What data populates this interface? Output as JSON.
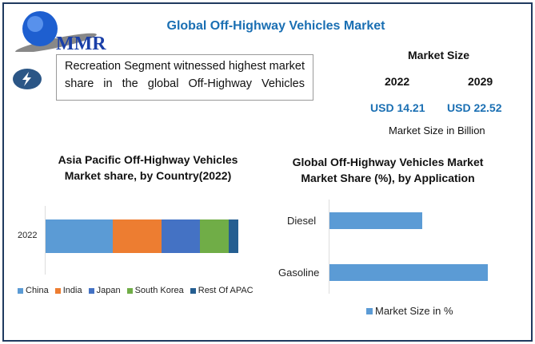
{
  "header": {
    "title": "Global Off-Highway Vehicles Market",
    "logo_text": "MMR",
    "icon": "lightning-bolt-icon"
  },
  "note": "Recreation Segment witnessed highest market share in the global Off-Highway Vehicles",
  "market_size": {
    "label": "Market Size",
    "year1": "2022",
    "year2": "2029",
    "value1": "USD 14.21",
    "value2": "USD 22.52",
    "unit_label": "Market Size in Billion"
  },
  "colors": {
    "accent": "#1a6fb3",
    "frame": "#1f3a5f"
  },
  "chart_data": [
    {
      "type": "bar",
      "orientation": "horizontal",
      "stacked": true,
      "title": "Asia Pacific Off-Highway Vehicles Market  share, by Country(2022)",
      "categories": [
        "2022"
      ],
      "series": [
        {
          "name": "China",
          "values": [
            35
          ],
          "color": "#5b9bd5"
        },
        {
          "name": "India",
          "values": [
            25
          ],
          "color": "#ed7d31"
        },
        {
          "name": "Japan",
          "values": [
            20
          ],
          "color": "#4472c4"
        },
        {
          "name": "South Korea",
          "values": [
            15
          ],
          "color": "#70ad47"
        },
        {
          "name": "Rest Of APAC",
          "values": [
            5
          ],
          "color": "#255e91"
        }
      ],
      "legend": "bottom"
    },
    {
      "type": "bar",
      "orientation": "horizontal",
      "title": "Global Off-Highway Vehicles Market Market Share (%), by Application",
      "categories": [
        "Diesel",
        "Gasoline"
      ],
      "series": [
        {
          "name": "Market Size in %",
          "values": [
            37,
            63
          ],
          "color": "#5b9bd5"
        }
      ],
      "legend": "bottom"
    }
  ]
}
